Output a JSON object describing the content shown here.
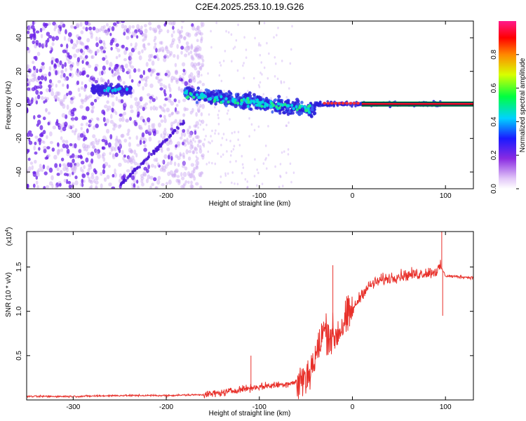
{
  "title": "C2E4.2025.253.10.19.G26",
  "colors": {
    "snr_line": "#e8302a",
    "spec_dot": "#6a1ee8",
    "spec_faint": "#c9a6f2"
  },
  "chart_data": [
    {
      "type": "heatmap",
      "name": "spectrogram",
      "xlabel": "Height of straight line (km)",
      "ylabel": "Frequency (Hz)",
      "xlim": [
        -350,
        130
      ],
      "ylim": [
        -50,
        50
      ],
      "xticks": [
        -300,
        -200,
        -100,
        0,
        100
      ],
      "xtick_labels": [
        "-300",
        "-200",
        "-100",
        "0",
        "100"
      ],
      "yticks": [
        -40,
        -20,
        0,
        20,
        40
      ],
      "ytick_labels": [
        "-40",
        "-20",
        "0",
        "20",
        "40"
      ],
      "colorbar": {
        "label": "Normalized spectral amplitude",
        "range": [
          0,
          1
        ],
        "ticks": [
          0.0,
          0.2,
          0.4,
          0.6,
          0.8
        ],
        "tick_labels": [
          "0.0",
          "0.2",
          "0.4",
          "0.6",
          "0.8"
        ]
      },
      "features": [
        {
          "name": "broadband noise",
          "x_range": [
            -350,
            -160
          ],
          "amplitude": 0.15
        },
        {
          "name": "diagonal streak",
          "x": [
            -250,
            -180
          ],
          "y": [
            -48,
            -10
          ],
          "amplitude": 0.3
        },
        {
          "name": "early signal cluster",
          "x_range": [
            -280,
            -240
          ],
          "y_center": 9,
          "amplitude": 0.3
        },
        {
          "name": "signal cluster",
          "x_range": [
            -180,
            -40
          ],
          "y_start": 8,
          "y_end": -3,
          "amplitude": 0.45
        },
        {
          "name": "steady tone",
          "x_range": [
            -40,
            130
          ],
          "y_center": 0.5,
          "amplitude": 0.95
        }
      ]
    },
    {
      "type": "line",
      "name": "snr",
      "xlabel": "Height of straight line (km)",
      "ylabel": "SNR (10 * v/v)",
      "yscale_label": "(x10",
      "yscale_exp": "4",
      "xlim": [
        -350,
        130
      ],
      "ylim": [
        0,
        1.9
      ],
      "xticks": [
        -300,
        -200,
        -100,
        0,
        100
      ],
      "xtick_labels": [
        "-300",
        "-200",
        "-100",
        "0",
        "100"
      ],
      "yticks": [
        0.5,
        1.0,
        1.5
      ],
      "ytick_labels": [
        "0.5",
        "1.0",
        "1.5"
      ],
      "series": [
        {
          "name": "SNR",
          "x": [
            -350,
            -300,
            -250,
            -200,
            -160,
            -140,
            -120,
            -100,
            -80,
            -60,
            -50,
            -40,
            -30,
            -20,
            -10,
            0,
            10,
            20,
            30,
            50,
            70,
            90,
            95,
            100,
            130
          ],
          "y": [
            0.04,
            0.04,
            0.05,
            0.05,
            0.06,
            0.08,
            0.12,
            0.15,
            0.17,
            0.2,
            0.25,
            0.45,
            0.8,
            0.7,
            0.85,
            1.0,
            1.2,
            1.3,
            1.35,
            1.4,
            1.42,
            1.45,
            1.5,
            1.4,
            1.38
          ]
        }
      ],
      "spikes": [
        {
          "x": -109,
          "y": 0.5
        },
        {
          "x": -21,
          "y": 1.52
        },
        {
          "x": 96,
          "y": 1.92
        },
        {
          "x": 97,
          "y": 0.95
        }
      ]
    }
  ]
}
